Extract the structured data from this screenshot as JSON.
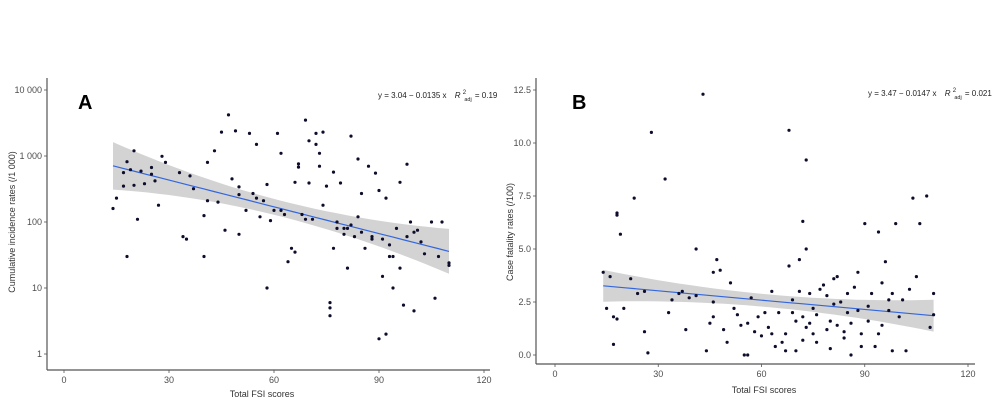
{
  "chart_data": [
    {
      "type": "scatter",
      "panel_label": "A",
      "title": "",
      "xlabel": "Total FSI scores",
      "ylabel": "Cumulative incidence rates (/1 000)",
      "xlim": [
        0,
        120
      ],
      "ylim": [
        1,
        10000
      ],
      "yscale": "log",
      "xticks": [
        0,
        30,
        60,
        90,
        120
      ],
      "xtick_labels": [
        "0",
        "30",
        "60",
        "90",
        "120"
      ],
      "yticks": [
        1,
        10,
        100,
        1000,
        10000
      ],
      "ytick_labels": [
        "1",
        "10",
        "100",
        "1 000",
        "10 000"
      ],
      "grid": false,
      "annotation": {
        "equation": "y = 3.04 − 0.0135 x",
        "r2_label": "R",
        "r2_sub": "adj",
        "r2_sup": "2",
        "r2_value": "= 0.19"
      },
      "fit": {
        "intercept_log10": 3.04,
        "slope": -0.0135,
        "x_range": [
          14,
          110
        ],
        "ci_halfwidth_log10_start": 0.36,
        "ci_halfwidth_log10_mid": 0.12,
        "ci_halfwidth_log10_end": 0.34
      },
      "points": [
        [
          14,
          160
        ],
        [
          15,
          230
        ],
        [
          17,
          350
        ],
        [
          17,
          560
        ],
        [
          18,
          30
        ],
        [
          18,
          820
        ],
        [
          19,
          620
        ],
        [
          20,
          1200
        ],
        [
          20,
          360
        ],
        [
          21,
          110
        ],
        [
          22,
          590
        ],
        [
          23,
          380
        ],
        [
          25,
          670
        ],
        [
          25,
          530
        ],
        [
          26,
          420
        ],
        [
          27,
          180
        ],
        [
          28,
          990
        ],
        [
          29,
          800
        ],
        [
          33,
          560
        ],
        [
          34,
          60
        ],
        [
          35,
          55
        ],
        [
          36,
          500
        ],
        [
          37,
          320
        ],
        [
          40,
          125
        ],
        [
          40,
          30
        ],
        [
          41,
          800
        ],
        [
          41,
          210
        ],
        [
          43,
          1200
        ],
        [
          44,
          200
        ],
        [
          45,
          2300
        ],
        [
          46,
          75
        ],
        [
          47,
          4200
        ],
        [
          48,
          450
        ],
        [
          49,
          2400
        ],
        [
          50,
          260
        ],
        [
          50,
          65
        ],
        [
          50,
          340
        ],
        [
          52,
          150
        ],
        [
          53,
          2200
        ],
        [
          54,
          270
        ],
        [
          55,
          230
        ],
        [
          55,
          1500
        ],
        [
          56,
          120
        ],
        [
          57,
          210
        ],
        [
          58,
          10
        ],
        [
          58,
          370
        ],
        [
          59,
          105
        ],
        [
          60,
          150
        ],
        [
          61,
          2200
        ],
        [
          62,
          1100
        ],
        [
          62,
          150
        ],
        [
          63,
          130
        ],
        [
          64,
          25
        ],
        [
          65,
          40
        ],
        [
          66,
          35
        ],
        [
          66,
          400
        ],
        [
          67,
          760
        ],
        [
          67,
          680
        ],
        [
          68,
          130
        ],
        [
          69,
          3500
        ],
        [
          69,
          110
        ],
        [
          70,
          1700
        ],
        [
          70,
          390
        ],
        [
          71,
          110
        ],
        [
          72,
          1500
        ],
        [
          72,
          2200
        ],
        [
          73,
          700
        ],
        [
          73,
          1100
        ],
        [
          74,
          2300
        ],
        [
          74,
          180
        ],
        [
          75,
          350
        ],
        [
          76,
          6
        ],
        [
          76,
          5
        ],
        [
          76,
          3.8
        ],
        [
          77,
          40
        ],
        [
          77,
          570
        ],
        [
          78,
          80
        ],
        [
          78,
          100
        ],
        [
          79,
          390
        ],
        [
          80,
          65
        ],
        [
          80,
          80
        ],
        [
          81,
          80
        ],
        [
          81,
          20
        ],
        [
          82,
          2000
        ],
        [
          82,
          90
        ],
        [
          83,
          60
        ],
        [
          84,
          900
        ],
        [
          84,
          120
        ],
        [
          85,
          270
        ],
        [
          85,
          70
        ],
        [
          86,
          40
        ],
        [
          87,
          700
        ],
        [
          88,
          60
        ],
        [
          88,
          55
        ],
        [
          89,
          550
        ],
        [
          90,
          300
        ],
        [
          90,
          1.7
        ],
        [
          91,
          55
        ],
        [
          91,
          15
        ],
        [
          92,
          230
        ],
        [
          92,
          2
        ],
        [
          93,
          30
        ],
        [
          93,
          45
        ],
        [
          94,
          30
        ],
        [
          94,
          10
        ],
        [
          95,
          80
        ],
        [
          96,
          20
        ],
        [
          96,
          400
        ],
        [
          97,
          5.5
        ],
        [
          98,
          750
        ],
        [
          98,
          60
        ],
        [
          99,
          100
        ],
        [
          100,
          70
        ],
        [
          100,
          4.5
        ],
        [
          101,
          75
        ],
        [
          102,
          50
        ],
        [
          103,
          33
        ],
        [
          105,
          100
        ],
        [
          106,
          7
        ],
        [
          107,
          30
        ],
        [
          108,
          100
        ],
        [
          110,
          24
        ],
        [
          110,
          22
        ]
      ]
    },
    {
      "type": "scatter",
      "panel_label": "B",
      "title": "",
      "xlabel": "Total FSI scores",
      "ylabel": "Case fatality rates (/100)",
      "xlim": [
        0,
        120
      ],
      "ylim": [
        0,
        12.5
      ],
      "yscale": "linear",
      "xticks": [
        0,
        30,
        60,
        90,
        120
      ],
      "xtick_labels": [
        "0",
        "30",
        "60",
        "90",
        "120"
      ],
      "yticks": [
        0,
        2.5,
        5,
        7.5,
        10,
        12.5
      ],
      "ytick_labels": [
        "0.0",
        "2.5",
        "5.0",
        "7.5",
        "10.0",
        "12.5"
      ],
      "grid": false,
      "annotation": {
        "equation": "y = 3.47 − 0.0147 x",
        "r2_label": "R",
        "r2_sub": "adj",
        "r2_sup": "2",
        "r2_value": "= 0.021"
      },
      "fit": {
        "intercept": 3.47,
        "slope": -0.0147,
        "x_range": [
          14,
          110
        ],
        "ci_halfwidth_start": 0.75,
        "ci_halfwidth_mid": 0.3,
        "ci_halfwidth_end": 0.75
      },
      "points": [
        [
          14,
          3.9
        ],
        [
          15,
          2.2
        ],
        [
          16,
          3.7
        ],
        [
          17,
          1.8
        ],
        [
          17,
          0.5
        ],
        [
          18,
          6.7
        ],
        [
          18,
          6.6
        ],
        [
          18,
          1.7
        ],
        [
          19,
          5.7
        ],
        [
          20,
          2.2
        ],
        [
          22,
          3.6
        ],
        [
          23,
          7.4
        ],
        [
          24,
          2.9
        ],
        [
          26,
          3.0
        ],
        [
          26,
          1.1
        ],
        [
          27,
          0.1
        ],
        [
          28,
          10.5
        ],
        [
          32,
          8.3
        ],
        [
          33,
          2.0
        ],
        [
          34,
          2.6
        ],
        [
          36,
          2.9
        ],
        [
          37,
          3.0
        ],
        [
          38,
          1.2
        ],
        [
          39,
          2.7
        ],
        [
          41,
          5.0
        ],
        [
          41,
          2.8
        ],
        [
          43,
          12.3
        ],
        [
          44,
          0.2
        ],
        [
          45,
          1.5
        ],
        [
          46,
          1.8
        ],
        [
          46,
          2.5
        ],
        [
          46,
          3.9
        ],
        [
          47,
          4.5
        ],
        [
          48,
          4.0
        ],
        [
          49,
          1.2
        ],
        [
          50,
          0.6
        ],
        [
          51,
          3.4
        ],
        [
          52,
          2.2
        ],
        [
          53,
          1.9
        ],
        [
          54,
          1.4
        ],
        [
          55,
          0.0
        ],
        [
          56,
          0.0
        ],
        [
          56,
          1.5
        ],
        [
          57,
          2.7
        ],
        [
          58,
          1.1
        ],
        [
          59,
          1.8
        ],
        [
          60,
          0.9
        ],
        [
          61,
          2.0
        ],
        [
          62,
          1.3
        ],
        [
          63,
          1.0
        ],
        [
          63,
          3.0
        ],
        [
          64,
          0.4
        ],
        [
          65,
          2.0
        ],
        [
          66,
          0.6
        ],
        [
          67,
          1.0
        ],
        [
          67,
          0.2
        ],
        [
          68,
          4.2
        ],
        [
          68,
          10.6
        ],
        [
          69,
          2.6
        ],
        [
          69,
          2.0
        ],
        [
          70,
          1.6
        ],
        [
          70,
          0.2
        ],
        [
          71,
          3.0
        ],
        [
          71,
          4.5
        ],
        [
          72,
          1.8
        ],
        [
          72,
          0.7
        ],
        [
          72,
          6.3
        ],
        [
          73,
          5.0
        ],
        [
          73,
          1.3
        ],
        [
          73,
          9.2
        ],
        [
          74,
          1.5
        ],
        [
          74,
          2.9
        ],
        [
          75,
          2.2
        ],
        [
          75,
          1.0
        ],
        [
          76,
          1.9
        ],
        [
          76,
          0.6
        ],
        [
          77,
          3.1
        ],
        [
          78,
          3.3
        ],
        [
          79,
          1.2
        ],
        [
          79,
          2.8
        ],
        [
          80,
          0.3
        ],
        [
          80,
          1.6
        ],
        [
          81,
          3.6
        ],
        [
          81,
          2.4
        ],
        [
          82,
          3.7
        ],
        [
          82,
          1.4
        ],
        [
          83,
          2.5
        ],
        [
          84,
          1.1
        ],
        [
          84,
          0.8
        ],
        [
          85,
          2.0
        ],
        [
          85,
          2.9
        ],
        [
          86,
          0.0
        ],
        [
          86,
          1.5
        ],
        [
          87,
          3.2
        ],
        [
          88,
          3.9
        ],
        [
          88,
          2.1
        ],
        [
          89,
          1.0
        ],
        [
          89,
          0.4
        ],
        [
          90,
          6.2
        ],
        [
          91,
          2.3
        ],
        [
          91,
          1.6
        ],
        [
          92,
          2.9
        ],
        [
          93,
          0.4
        ],
        [
          94,
          1.0
        ],
        [
          94,
          5.8
        ],
        [
          95,
          1.4
        ],
        [
          95,
          3.4
        ],
        [
          96,
          4.4
        ],
        [
          97,
          2.1
        ],
        [
          97,
          2.6
        ],
        [
          98,
          0.2
        ],
        [
          98,
          2.9
        ],
        [
          99,
          6.2
        ],
        [
          100,
          1.8
        ],
        [
          101,
          2.6
        ],
        [
          102,
          0.2
        ],
        [
          103,
          3.1
        ],
        [
          104,
          7.4
        ],
        [
          105,
          3.7
        ],
        [
          106,
          6.2
        ],
        [
          108,
          7.5
        ],
        [
          109,
          1.3
        ],
        [
          110,
          2.9
        ],
        [
          110,
          1.9
        ]
      ]
    }
  ]
}
